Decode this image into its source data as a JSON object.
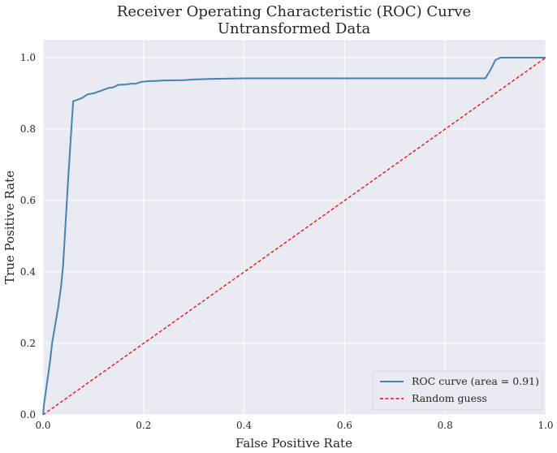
{
  "chart_data": {
    "type": "line",
    "title": "Receiver Operating Characteristic (ROC) Curve",
    "subtitle": "Untransformed Data",
    "xlabel": "False Positive Rate",
    "ylabel": "True Positive Rate",
    "xlim": [
      0,
      1
    ],
    "ylim": [
      0,
      1.05
    ],
    "x_ticks": [
      "0.0",
      "0.2",
      "0.4",
      "0.6",
      "0.8",
      "1.0"
    ],
    "y_ticks": [
      "0.0",
      "0.2",
      "0.4",
      "0.6",
      "0.8",
      "1.0"
    ],
    "grid": true,
    "legend_position": "lower-right",
    "colors": {
      "background": "#eaeaf2",
      "grid": "#ffffff"
    },
    "series": [
      {
        "name": "ROC curve (area = 0.91)",
        "color": "#4682b4",
        "style": "solid",
        "points": [
          [
            0.0,
            0.0
          ],
          [
            0.002,
            0.03
          ],
          [
            0.008,
            0.09
          ],
          [
            0.014,
            0.15
          ],
          [
            0.018,
            0.2
          ],
          [
            0.024,
            0.25
          ],
          [
            0.03,
            0.3
          ],
          [
            0.036,
            0.36
          ],
          [
            0.04,
            0.42
          ],
          [
            0.045,
            0.54
          ],
          [
            0.05,
            0.66
          ],
          [
            0.055,
            0.77
          ],
          [
            0.06,
            0.878
          ],
          [
            0.068,
            0.882
          ],
          [
            0.078,
            0.887
          ],
          [
            0.088,
            0.897
          ],
          [
            0.1,
            0.9
          ],
          [
            0.115,
            0.907
          ],
          [
            0.13,
            0.915
          ],
          [
            0.14,
            0.917
          ],
          [
            0.15,
            0.924
          ],
          [
            0.165,
            0.925
          ],
          [
            0.175,
            0.927
          ],
          [
            0.185,
            0.927
          ],
          [
            0.195,
            0.932
          ],
          [
            0.21,
            0.934
          ],
          [
            0.225,
            0.935
          ],
          [
            0.24,
            0.936
          ],
          [
            0.28,
            0.937
          ],
          [
            0.3,
            0.939
          ],
          [
            0.35,
            0.941
          ],
          [
            0.4,
            0.942
          ],
          [
            0.5,
            0.942
          ],
          [
            0.6,
            0.942
          ],
          [
            0.7,
            0.942
          ],
          [
            0.8,
            0.942
          ],
          [
            0.88,
            0.942
          ],
          [
            0.89,
            0.965
          ],
          [
            0.9,
            0.993
          ],
          [
            0.91,
            1.0
          ],
          [
            1.0,
            1.0
          ]
        ]
      },
      {
        "name": "Random guess",
        "color": "#ff0000",
        "style": "dashed",
        "points": [
          [
            0.0,
            0.0
          ],
          [
            1.0,
            1.0
          ]
        ]
      }
    ]
  }
}
